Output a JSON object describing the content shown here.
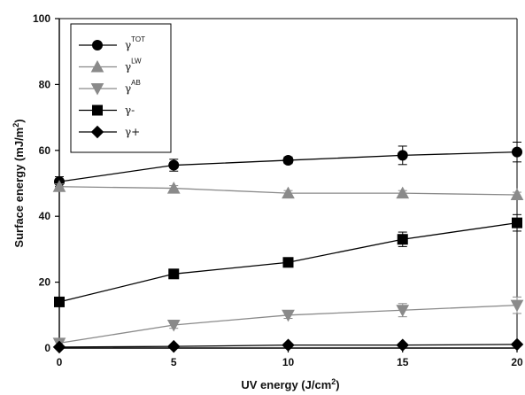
{
  "chart_data": {
    "type": "line",
    "xlabel": "UV energy (J/cm",
    "xlabel_sup": "2",
    "xlabel_end": ")",
    "ylabel": "Surface energy (mJ/m",
    "ylabel_sup": "2",
    "ylabel_end": ")",
    "xlim": [
      0,
      20
    ],
    "ylim": [
      0,
      100
    ],
    "xticks": [
      0,
      5,
      10,
      15,
      20
    ],
    "yticks": [
      0,
      20,
      40,
      60,
      80,
      100
    ],
    "x": [
      0,
      5,
      10,
      15,
      20
    ],
    "grid": false,
    "legend_position": "top-left",
    "series": [
      {
        "name": "γ",
        "sup": "TOT",
        "marker": "circle",
        "color": "#000000",
        "values": [
          50.5,
          55.5,
          57,
          58.5,
          59.5
        ],
        "errors": [
          1.5,
          1.8,
          1,
          2.8,
          3
        ]
      },
      {
        "name": "γ",
        "sup": "LW",
        "marker": "triangle-up",
        "color": "#8a8a8a",
        "values": [
          49,
          48.5,
          47,
          47,
          46.5
        ],
        "errors": [
          0.8,
          0.8,
          0.8,
          0.8,
          0.8
        ]
      },
      {
        "name": "γ",
        "sup": "AB",
        "marker": "triangle-down",
        "color": "#8a8a8a",
        "values": [
          1.5,
          7,
          10,
          11.5,
          13
        ],
        "errors": [
          1,
          1,
          1,
          2,
          2.5
        ]
      },
      {
        "name": "γ-",
        "sup": "",
        "marker": "square",
        "color": "#000000",
        "values": [
          14,
          22.5,
          26,
          33,
          38
        ],
        "errors": [
          0.8,
          1,
          1,
          2.2,
          2.5
        ]
      },
      {
        "name": "γ+",
        "sup": "",
        "marker": "diamond",
        "color": "#000000",
        "values": [
          0.3,
          0.5,
          0.9,
          0.9,
          1.1
        ],
        "errors": [
          0,
          0,
          0,
          0,
          0
        ]
      }
    ]
  }
}
